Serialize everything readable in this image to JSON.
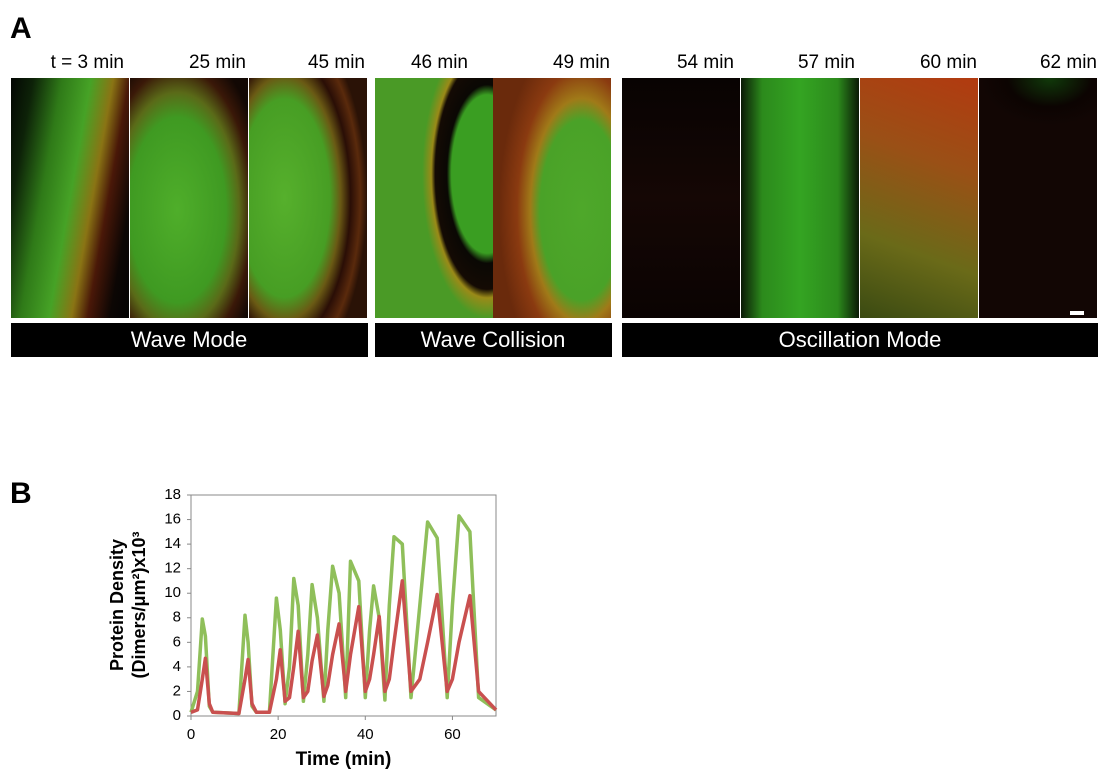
{
  "panel_labels": [
    "A",
    "B"
  ],
  "panel_a": {
    "times": [
      "t = 3 min",
      "25 min",
      "45 min",
      "46 min",
      "49 min",
      "54 min",
      "57 min",
      "60 min",
      "62 min"
    ],
    "modes": [
      "Wave Mode",
      "Wave Collision",
      "Oscillation Mode"
    ]
  },
  "chart_data": {
    "type": "line",
    "x_label": "Time (min)",
    "y_label": [
      "Protein Density",
      "(Dimers/μm²)x10³"
    ],
    "xlim": [
      0,
      70
    ],
    "xticks": [
      0,
      20,
      40,
      60
    ],
    "ylim": [
      0,
      18
    ],
    "yticks": [
      0,
      2,
      4,
      6,
      8,
      10,
      12,
      14,
      16,
      18
    ],
    "grid": false,
    "x": [
      0,
      1.5,
      2.6,
      3.3,
      4.2,
      5,
      11,
      12.4,
      13.1,
      14,
      15,
      18,
      19.6,
      20.5,
      21.6,
      22.6,
      23.6,
      24.6,
      25.8,
      26.8,
      27.8,
      29,
      30.5,
      31.4,
      32.5,
      34,
      35.5,
      36.6,
      38.5,
      40,
      41,
      41.9,
      43.2,
      44.5,
      45.5,
      46.6,
      48.5,
      50.5,
      52.5,
      54.3,
      56.5,
      58.8,
      60,
      61.5,
      64,
      66,
      70
    ],
    "series": [
      {
        "color": "#8fbf5a",
        "values": [
          0.3,
          2,
          7.9,
          6.5,
          0.8,
          0.3,
          0.2,
          8.2,
          6,
          0.8,
          0.3,
          0.3,
          9.6,
          7,
          1,
          4,
          11.2,
          9,
          1.2,
          5,
          10.7,
          8,
          1.2,
          7,
          12.2,
          10,
          1.5,
          12.6,
          11,
          1.5,
          7,
          10.6,
          8,
          1.3,
          9,
          14.6,
          14,
          1.5,
          9,
          15.8,
          14.5,
          1.5,
          9,
          16.3,
          15,
          1.5,
          0.5
        ]
      },
      {
        "color": "#c9504f",
        "values": [
          0.3,
          0.5,
          3,
          4.7,
          1,
          0.3,
          0.2,
          3,
          4.6,
          1,
          0.3,
          0.3,
          3,
          5.4,
          1.2,
          1.5,
          4,
          6.9,
          1.5,
          2,
          4.5,
          6.6,
          1.6,
          2.5,
          5,
          7.5,
          2,
          5,
          8.9,
          2,
          3,
          5,
          8.1,
          2,
          3,
          6,
          11.0,
          2,
          3,
          6,
          9.9,
          2,
          3,
          6,
          9.8,
          2,
          0.5
        ]
      }
    ]
  }
}
